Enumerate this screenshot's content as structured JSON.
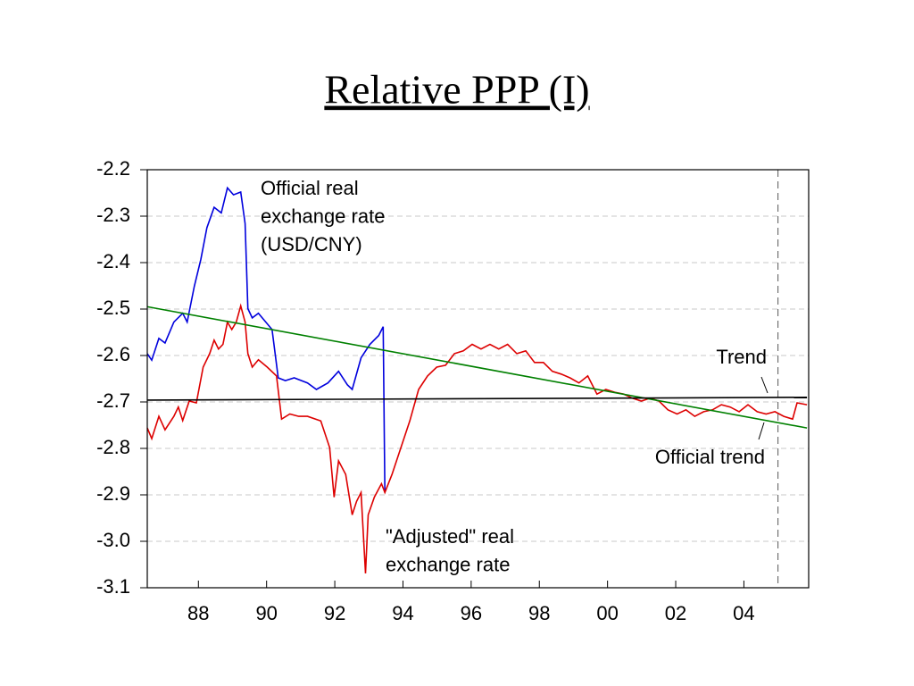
{
  "chart_data": {
    "type": "line",
    "title": "Relative PPP (I)",
    "xlim": [
      1986.5,
      2005.9
    ],
    "ylim": [
      -3.1,
      -2.2
    ],
    "xticks": [
      {
        "value": 1988,
        "label": "88"
      },
      {
        "value": 1990,
        "label": "90"
      },
      {
        "value": 1992,
        "label": "92"
      },
      {
        "value": 1994,
        "label": "94"
      },
      {
        "value": 1996,
        "label": "96"
      },
      {
        "value": 1998,
        "label": "98"
      },
      {
        "value": 2000,
        "label": "00"
      },
      {
        "value": 2002,
        "label": "02"
      },
      {
        "value": 2004,
        "label": "04"
      }
    ],
    "yticks": [
      -2.2,
      -2.3,
      -2.4,
      -2.5,
      -2.6,
      -2.7,
      -2.8,
      -2.9,
      {
        "value": -3,
        "label": "-3.0"
      },
      -3.1
    ],
    "grid": true,
    "vline": 2005,
    "series": [
      {
        "label_lines": [
          "Official real",
          "exchange rate",
          "(USD/CNY)"
        ],
        "color": "#0000dd",
        "x": [
          1986.5,
          1986.63,
          1986.84,
          1987.02,
          1987.28,
          1987.54,
          1987.67,
          1987.88,
          1988.07,
          1988.25,
          1988.46,
          1988.67,
          1988.85,
          1989.03,
          1989.24,
          1989.37,
          1989.45,
          1989.58,
          1989.76,
          1990.16,
          1990.34,
          1990.55,
          1990.81,
          1991.2,
          1991.46,
          1991.8,
          1992.11,
          1992.37,
          1992.51,
          1992.77,
          1993.03,
          1993.29,
          1993.42,
          1993.47
        ],
        "values": [
          -2.596,
          -2.61,
          -2.563,
          -2.573,
          -2.528,
          -2.509,
          -2.528,
          -2.451,
          -2.393,
          -2.325,
          -2.281,
          -2.293,
          -2.239,
          -2.254,
          -2.248,
          -2.316,
          -2.499,
          -2.519,
          -2.509,
          -2.544,
          -2.648,
          -2.654,
          -2.648,
          -2.659,
          -2.673,
          -2.659,
          -2.634,
          -2.663,
          -2.673,
          -2.605,
          -2.576,
          -2.557,
          -2.538,
          -2.895
        ]
      },
      {
        "label_lines": [
          "\"Adjusted\" real",
          "exchange rate"
        ],
        "color": "#dd0000",
        "x": [
          1986.5,
          1986.63,
          1986.84,
          1987.02,
          1987.28,
          1987.41,
          1987.54,
          1987.73,
          1987.94,
          1988.14,
          1988.33,
          1988.46,
          1988.59,
          1988.72,
          1988.85,
          1988.98,
          1989.11,
          1989.24,
          1989.37,
          1989.45,
          1989.58,
          1989.76,
          1990.02,
          1990.29,
          1990.44,
          1990.68,
          1990.94,
          1991.2,
          1991.59,
          1991.85,
          1991.98,
          1992.11,
          1992.32,
          1992.51,
          1992.64,
          1992.77,
          1992.9,
          1992.98,
          1993.16,
          1993.37,
          1993.47,
          1993.68,
          1993.94,
          1994.2,
          1994.46,
          1994.72,
          1994.99,
          1995.25,
          1995.51,
          1995.77,
          1996.03,
          1996.29,
          1996.55,
          1996.81,
          1997.07,
          1997.34,
          1997.6,
          1997.86,
          1998.12,
          1998.38,
          1998.64,
          1998.9,
          1999.16,
          1999.42,
          1999.69,
          1999.95,
          2000.21,
          2000.47,
          2000.73,
          2000.99,
          2001.25,
          2001.51,
          2001.77,
          2002.04,
          2002.3,
          2002.56,
          2002.82,
          2003.08,
          2003.34,
          2003.6,
          2003.86,
          2004.12,
          2004.39,
          2004.65,
          2004.91,
          2005.17,
          2005.43,
          2005.56,
          2005.85
        ],
        "values": [
          -2.756,
          -2.779,
          -2.731,
          -2.76,
          -2.731,
          -2.711,
          -2.74,
          -2.698,
          -2.702,
          -2.625,
          -2.596,
          -2.567,
          -2.586,
          -2.576,
          -2.528,
          -2.544,
          -2.528,
          -2.493,
          -2.528,
          -2.596,
          -2.625,
          -2.609,
          -2.625,
          -2.644,
          -2.737,
          -2.726,
          -2.731,
          -2.731,
          -2.741,
          -2.798,
          -2.905,
          -2.827,
          -2.856,
          -2.943,
          -2.914,
          -2.895,
          -3.069,
          -2.943,
          -2.905,
          -2.876,
          -2.895,
          -2.856,
          -2.798,
          -2.741,
          -2.673,
          -2.644,
          -2.625,
          -2.621,
          -2.596,
          -2.59,
          -2.576,
          -2.586,
          -2.576,
          -2.586,
          -2.576,
          -2.596,
          -2.59,
          -2.615,
          -2.615,
          -2.634,
          -2.64,
          -2.648,
          -2.659,
          -2.644,
          -2.683,
          -2.673,
          -2.679,
          -2.683,
          -2.692,
          -2.698,
          -2.692,
          -2.698,
          -2.717,
          -2.726,
          -2.717,
          -2.731,
          -2.721,
          -2.717,
          -2.706,
          -2.711,
          -2.721,
          -2.706,
          -2.721,
          -2.726,
          -2.721,
          -2.731,
          -2.737,
          -2.702,
          -2.706
        ]
      },
      {
        "label_lines": [
          "Official trend"
        ],
        "color": "#008000",
        "x": [
          1986.5,
          2005.85
        ],
        "values": [
          -2.495,
          -2.756
        ]
      },
      {
        "label_lines": [
          "Trend"
        ],
        "color": "#000000",
        "x": [
          1986.5,
          2005.85
        ],
        "values": [
          -2.696,
          -2.69
        ]
      }
    ]
  }
}
